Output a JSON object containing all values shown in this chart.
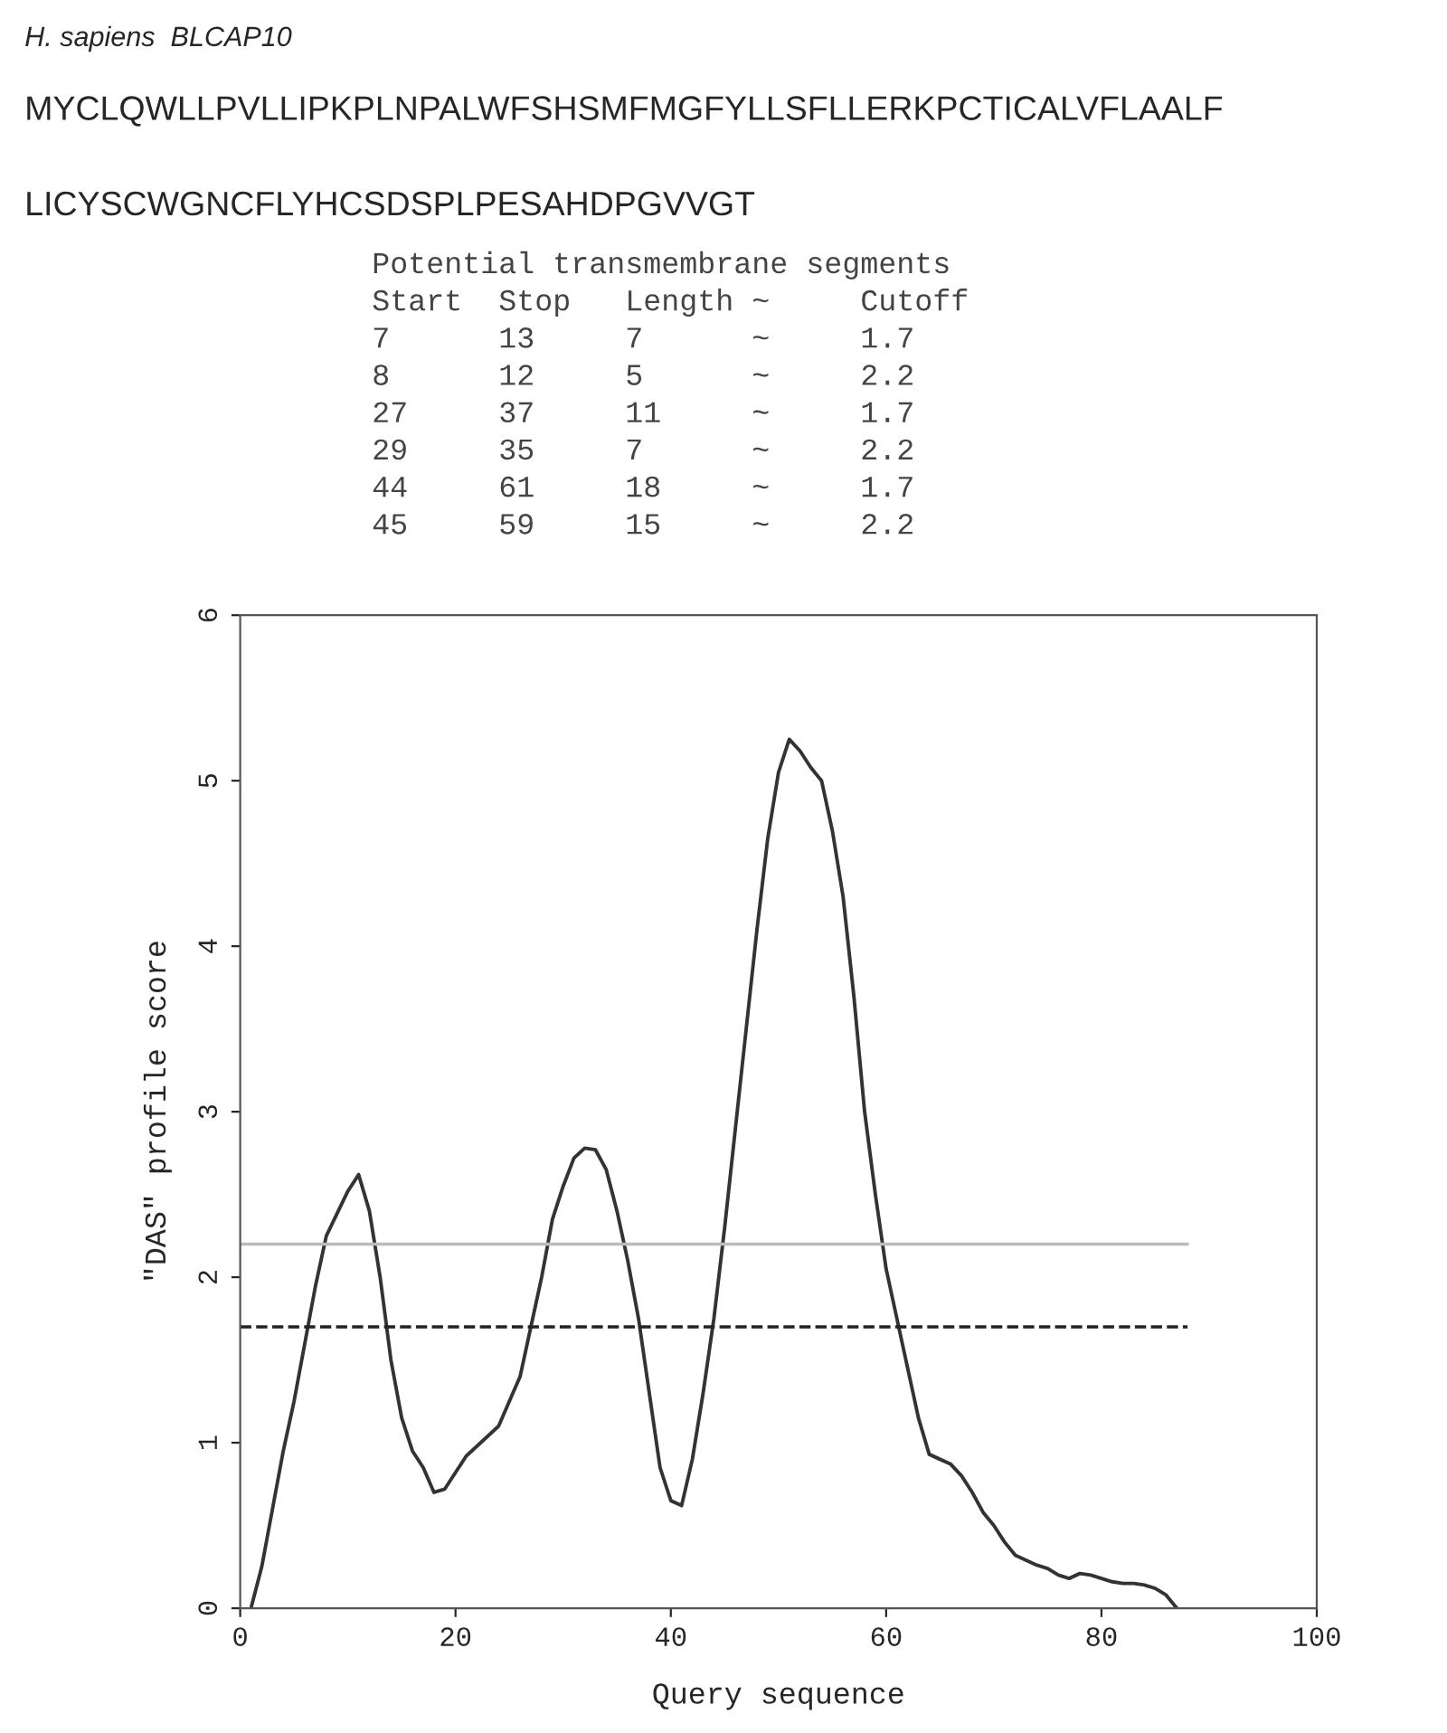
{
  "chart_data": {
    "type": "line",
    "title": "H. sapiens  BLCAP10",
    "annotations": [
      "MYCLQWLLPVLLIPKPLNPALWFSHSMFMGFYLLSFLLERKPCTICALVFLAALF",
      "LICYSCWGNCFLYHCSDSPLPESAHDPGVVGT",
      "Potential transmembrane segments",
      "Start  Stop   Length ~     Cutoff",
      "7      13     7      ~     1.7",
      "8      12     5      ~     2.2",
      "27     37     11     ~     1.7",
      "29     35     7      ~     2.2",
      "44     61     18     ~     1.7",
      "45     59     15     ~     2.2"
    ],
    "xlabel": "Query sequence",
    "ylabel": "\"DAS\" profile score",
    "x": [
      1,
      2,
      3,
      4,
      5,
      6,
      7,
      8,
      10,
      11,
      12,
      13,
      14,
      15,
      16,
      17,
      18,
      19,
      20,
      21,
      22,
      24,
      25,
      26,
      27,
      28,
      29,
      30,
      31,
      32,
      33,
      34,
      35,
      36,
      37,
      38,
      39,
      40,
      41,
      42,
      43,
      44,
      45,
      46,
      47,
      48,
      49,
      50,
      51,
      52,
      53,
      54,
      55,
      56,
      57,
      58,
      59,
      60,
      61,
      62,
      63,
      64,
      65,
      66,
      67,
      68,
      69,
      70,
      71,
      72,
      73,
      74,
      75,
      76,
      77,
      78,
      79,
      80,
      81,
      82,
      83,
      84,
      85,
      86,
      87
    ],
    "series": [
      {
        "color": "#333333",
        "values": [
          0,
          0.25,
          0.6,
          0.95,
          1.25,
          1.6,
          1.95,
          2.25,
          2.52,
          2.62,
          2.4,
          2.0,
          1.5,
          1.15,
          0.95,
          0.85,
          0.7,
          0.72,
          0.82,
          0.92,
          0.98,
          1.1,
          1.25,
          1.4,
          1.7,
          2.0,
          2.35,
          2.55,
          2.72,
          2.78,
          2.77,
          2.65,
          2.4,
          2.1,
          1.75,
          1.3,
          0.85,
          0.65,
          0.62,
          0.9,
          1.3,
          1.75,
          2.3,
          2.9,
          3.5,
          4.1,
          4.65,
          5.05,
          5.25,
          5.18,
          5.08,
          5.0,
          4.7,
          4.3,
          3.7,
          3.0,
          2.5,
          2.05,
          1.75,
          1.45,
          1.15,
          0.93,
          0.9,
          0.87,
          0.8,
          0.7,
          0.58,
          0.5,
          0.4,
          0.32,
          0.29,
          0.26,
          0.24,
          0.2,
          0.18,
          0.21,
          0.2,
          0.18,
          0.16,
          0.15,
          0.15,
          0.14,
          0.12,
          0.08,
          0
        ]
      }
    ],
    "ref_lines": [
      {
        "axis": "y",
        "value": 2.2,
        "color": "#bbbbbb",
        "line_style": "solid"
      },
      {
        "axis": "y",
        "value": 1.7,
        "color": "#222222",
        "line_style": "dashed"
      }
    ],
    "xlim": [
      0,
      100
    ],
    "ylim": [
      0,
      6
    ],
    "xticks": [
      0,
      20,
      40,
      60,
      80,
      100
    ],
    "yticks": [
      0,
      1,
      2,
      3,
      4,
      5,
      6
    ],
    "grid": false,
    "legend": false,
    "marker": "none",
    "line_style": "solid"
  }
}
